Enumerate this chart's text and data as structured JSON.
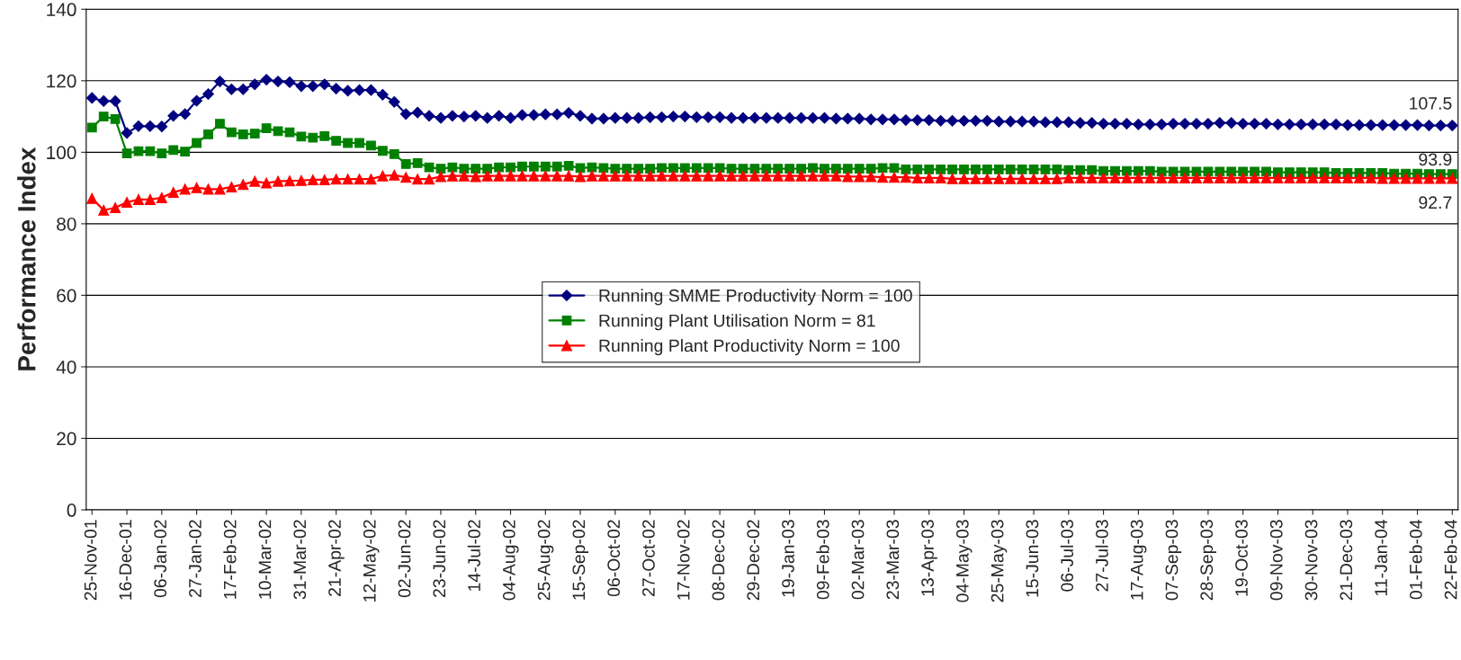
{
  "chart_data": {
    "type": "line",
    "ylabel": "Performance Index",
    "categories": [
      "25-Nov-01",
      null,
      null,
      "16-Dec-01",
      null,
      null,
      "06-Jan-02",
      null,
      null,
      "27-Jan-02",
      null,
      null,
      "17-Feb-02",
      null,
      null,
      "10-Mar-02",
      null,
      null,
      "31-Mar-02",
      null,
      null,
      "21-Apr-02",
      null,
      null,
      "12-May-02",
      null,
      null,
      "02-Jun-02",
      null,
      null,
      "23-Jun-02",
      null,
      null,
      "14-Jul-02",
      null,
      null,
      "04-Aug-02",
      null,
      null,
      "25-Aug-02",
      null,
      null,
      "15-Sep-02",
      null,
      null,
      "06-Oct-02",
      null,
      null,
      "27-Oct-02",
      null,
      null,
      "17-Nov-02",
      null,
      null,
      "08-Dec-02",
      null,
      null,
      "29-Dec-02",
      null,
      null,
      "19-Jan-03",
      null,
      null,
      "09-Feb-03",
      null,
      null,
      "02-Mar-03",
      null,
      null,
      "23-Mar-03",
      null,
      null,
      "13-Apr-03",
      null,
      null,
      "04-May-03",
      null,
      null,
      "25-May-03",
      null,
      null,
      "15-Jun-03",
      null,
      null,
      "06-Jul-03",
      null,
      null,
      "27-Jul-03",
      null,
      null,
      "17-Aug-03",
      null,
      null,
      "07-Sep-03",
      null,
      null,
      "28-Sep-03",
      null,
      null,
      "19-Oct-03",
      null,
      null,
      "09-Nov-03",
      null,
      null,
      "30-Nov-03",
      null,
      null,
      "21-Dec-03",
      null,
      null,
      "11-Jan-04",
      null,
      null,
      "01-Feb-04",
      null,
      null,
      "22-Feb-04"
    ],
    "series": [
      {
        "name": "Running SMME Productivity Norm = 100",
        "color": "#000080",
        "marker": "diamond",
        "values": [
          115.2,
          114.3,
          114.3,
          105.4,
          107.3,
          107.3,
          107.2,
          110.2,
          110.7,
          114.4,
          116.3,
          119.8,
          117.6,
          117.6,
          119.0,
          120.3,
          119.8,
          119.6,
          118.5,
          118.5,
          119.0,
          117.8,
          117.2,
          117.4,
          117.4,
          116.1,
          114.1,
          110.7,
          111.1,
          110.2,
          109.6,
          110.2,
          110.0,
          110.2,
          109.6,
          110.2,
          109.6,
          110.4,
          110.4,
          110.6,
          110.6,
          111.0,
          110.2,
          109.4,
          109.4,
          109.6,
          109.6,
          109.6,
          109.8,
          109.8,
          110.0,
          110.0,
          109.8,
          109.8,
          109.8,
          109.6,
          109.6,
          109.6,
          109.6,
          109.6,
          109.6,
          109.6,
          109.6,
          109.6,
          109.4,
          109.4,
          109.4,
          109.2,
          109.2,
          109.2,
          109.0,
          109.0,
          109.0,
          108.8,
          108.8,
          108.8,
          108.8,
          108.8,
          108.6,
          108.6,
          108.6,
          108.6,
          108.4,
          108.4,
          108.4,
          108.2,
          108.2,
          108.0,
          108.0,
          108.0,
          107.8,
          107.8,
          107.8,
          108.0,
          108.0,
          108.0,
          108.0,
          108.2,
          108.2,
          108.0,
          108.0,
          108.0,
          107.8,
          107.8,
          107.8,
          107.8,
          107.8,
          107.8,
          107.6,
          107.6,
          107.6,
          107.6,
          107.6,
          107.6,
          107.6,
          107.5,
          107.5,
          107.5
        ]
      },
      {
        "name": "Running Plant Utilisation Norm = 81",
        "color": "#008000",
        "marker": "square",
        "values": [
          106.9,
          110.0,
          109.3,
          99.7,
          100.3,
          100.3,
          99.7,
          100.6,
          100.2,
          102.6,
          105.0,
          108.0,
          105.6,
          105.0,
          105.2,
          106.7,
          105.9,
          105.6,
          104.4,
          104.1,
          104.5,
          103.2,
          102.6,
          102.6,
          101.9,
          100.4,
          99.5,
          96.7,
          97.0,
          95.8,
          95.4,
          95.8,
          95.4,
          95.4,
          95.4,
          95.8,
          95.8,
          96.0,
          96.0,
          96.0,
          96.0,
          96.2,
          95.6,
          95.8,
          95.6,
          95.4,
          95.4,
          95.4,
          95.4,
          95.6,
          95.6,
          95.6,
          95.6,
          95.6,
          95.6,
          95.4,
          95.4,
          95.4,
          95.4,
          95.4,
          95.4,
          95.4,
          95.6,
          95.4,
          95.4,
          95.4,
          95.4,
          95.4,
          95.6,
          95.6,
          95.2,
          95.2,
          95.2,
          95.2,
          95.2,
          95.2,
          95.2,
          95.2,
          95.2,
          95.2,
          95.2,
          95.2,
          95.2,
          95.2,
          95.0,
          95.0,
          95.0,
          94.8,
          94.8,
          94.8,
          94.8,
          94.8,
          94.6,
          94.6,
          94.6,
          94.6,
          94.6,
          94.6,
          94.6,
          94.6,
          94.6,
          94.6,
          94.4,
          94.4,
          94.4,
          94.4,
          94.4,
          94.2,
          94.2,
          94.2,
          94.2,
          94.2,
          94.0,
          94.0,
          94.0,
          93.9,
          93.9,
          93.9
        ]
      },
      {
        "name": "Running Plant Productivity Norm = 100",
        "color": "#ff0000",
        "marker": "triangle",
        "values": [
          87.1,
          83.8,
          84.5,
          86.0,
          86.8,
          86.8,
          87.3,
          88.8,
          89.7,
          90.1,
          89.7,
          89.7,
          90.3,
          91.0,
          91.9,
          91.4,
          91.9,
          92.0,
          92.1,
          92.3,
          92.3,
          92.5,
          92.5,
          92.5,
          92.5,
          93.4,
          93.6,
          93.0,
          92.5,
          92.5,
          93.2,
          93.4,
          93.4,
          93.2,
          93.4,
          93.4,
          93.4,
          93.4,
          93.4,
          93.4,
          93.4,
          93.4,
          93.2,
          93.4,
          93.4,
          93.4,
          93.4,
          93.4,
          93.4,
          93.4,
          93.4,
          93.4,
          93.4,
          93.4,
          93.4,
          93.4,
          93.4,
          93.4,
          93.4,
          93.4,
          93.4,
          93.4,
          93.4,
          93.4,
          93.4,
          93.2,
          93.2,
          93.2,
          93.0,
          93.0,
          93.0,
          92.8,
          92.8,
          92.8,
          92.6,
          92.6,
          92.6,
          92.6,
          92.6,
          92.6,
          92.6,
          92.6,
          92.6,
          92.6,
          92.8,
          92.8,
          92.8,
          92.8,
          92.8,
          92.8,
          92.8,
          92.8,
          92.8,
          92.8,
          92.8,
          92.8,
          92.8,
          92.8,
          92.8,
          92.8,
          92.8,
          92.8,
          92.8,
          92.8,
          92.8,
          92.8,
          92.8,
          92.8,
          92.8,
          92.8,
          92.8,
          92.7,
          92.7,
          92.7,
          92.7,
          92.7,
          92.7,
          92.7
        ]
      }
    ],
    "annotations": [
      {
        "text": "107.5",
        "x": "22-Feb-04",
        "y": 107.5
      },
      {
        "text": "93.9",
        "x": "22-Feb-04",
        "y": 93.9
      },
      {
        "text": "92.7",
        "x": "22-Feb-04",
        "y": 92.7
      }
    ],
    "ylim": [
      0,
      140
    ],
    "yticks": [
      0,
      20,
      40,
      60,
      80,
      100,
      120,
      140
    ],
    "grid": "y",
    "legend": "center",
    "line_style": "solid"
  }
}
